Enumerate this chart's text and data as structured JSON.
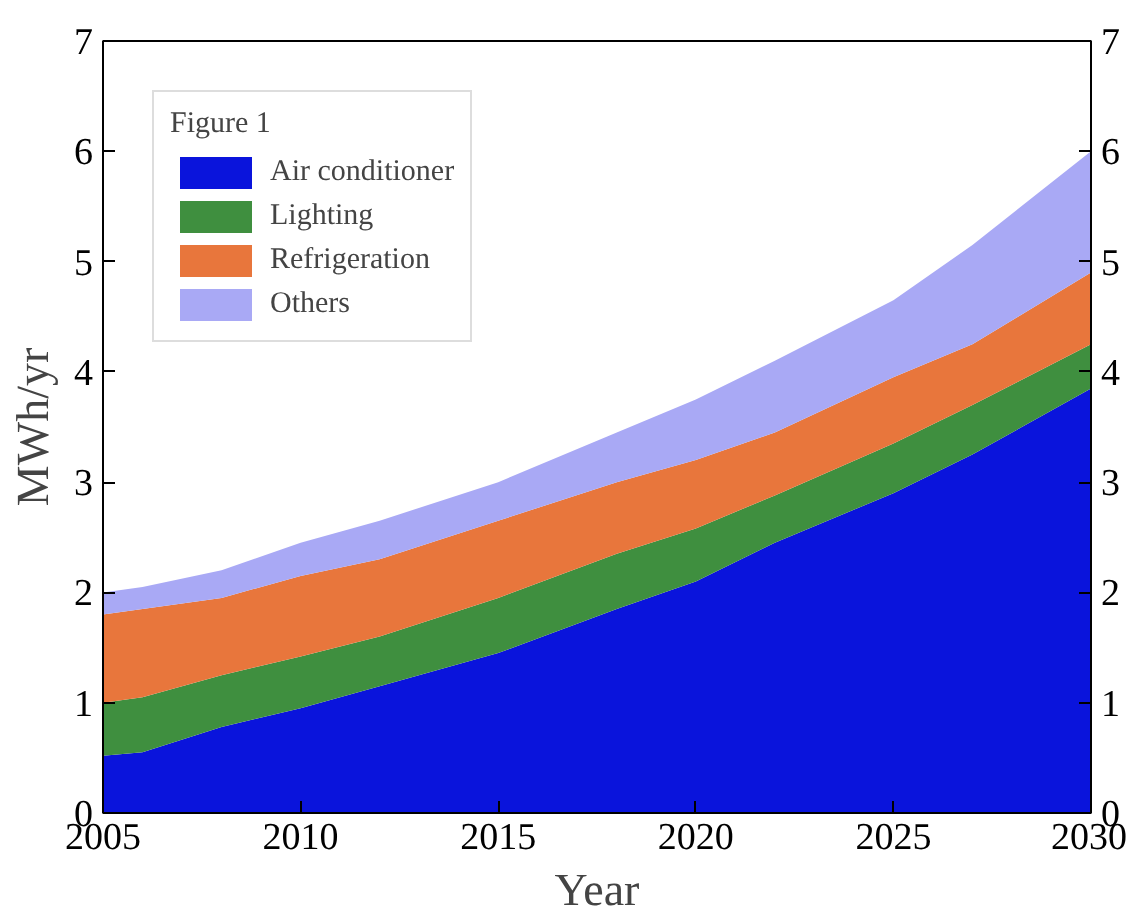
{
  "chart_data": {
    "type": "area",
    "stacked": true,
    "xlabel": "Year",
    "ylabel": "MWh/yr",
    "legend_title": "Figure 1",
    "x": [
      2005,
      2006,
      2008,
      2010,
      2012,
      2015,
      2018,
      2020,
      2022,
      2025,
      2027,
      2030
    ],
    "series": [
      {
        "name": "Air conditioner",
        "color": "#0a14dc",
        "values": [
          0.52,
          0.55,
          0.78,
          0.95,
          1.15,
          1.45,
          1.85,
          2.1,
          2.45,
          2.9,
          3.25,
          3.85
        ]
      },
      {
        "name": "Lighting",
        "color": "#3f8f3f",
        "values": [
          0.48,
          0.5,
          0.47,
          0.47,
          0.45,
          0.5,
          0.5,
          0.48,
          0.43,
          0.45,
          0.45,
          0.4
        ]
      },
      {
        "name": "Refrigeration",
        "color": "#e8763c",
        "values": [
          0.8,
          0.8,
          0.7,
          0.73,
          0.7,
          0.7,
          0.65,
          0.62,
          0.57,
          0.6,
          0.55,
          0.65
        ]
      },
      {
        "name": "Others",
        "color": "#a9a9f5",
        "values": [
          0.2,
          0.2,
          0.25,
          0.3,
          0.35,
          0.35,
          0.45,
          0.55,
          0.65,
          0.7,
          0.9,
          1.1
        ]
      }
    ],
    "xlim": [
      2005,
      2030
    ],
    "xticks": [
      2005,
      2010,
      2015,
      2020,
      2025,
      2030
    ],
    "ylim": [
      0,
      7
    ],
    "yticks": [
      0,
      1,
      2,
      3,
      4,
      5,
      6,
      7
    ],
    "y2lim": [
      0,
      7
    ],
    "y2ticks": [
      0,
      1,
      2,
      3,
      4,
      5,
      6,
      7
    ],
    "grid": false,
    "legend": "top left"
  }
}
